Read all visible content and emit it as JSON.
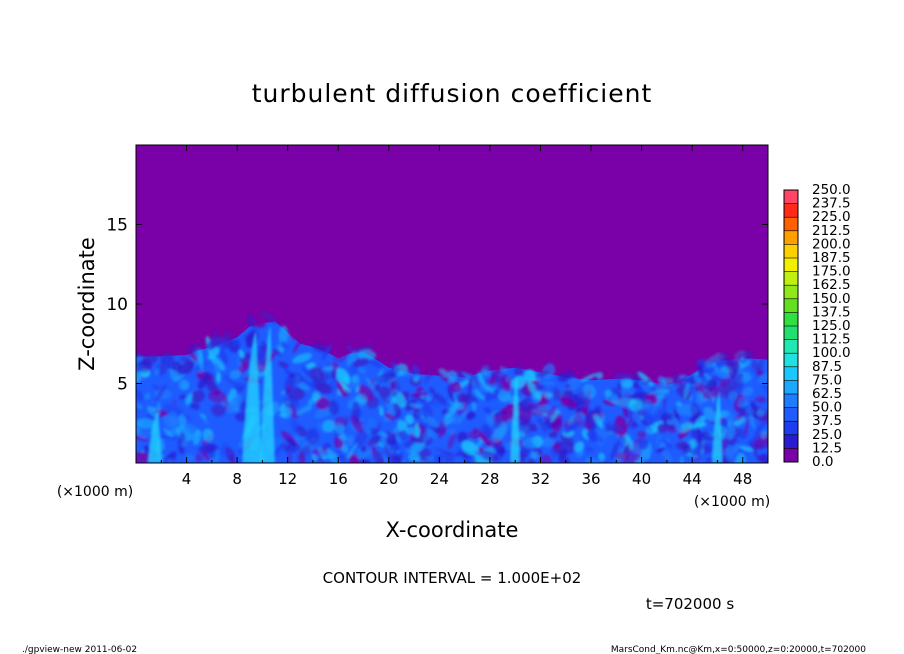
{
  "chart_data": {
    "type": "heatmap",
    "title": "turbulent diffusion coefficient",
    "xlabel": "X-coordinate",
    "ylabel": "Z-coordinate",
    "x_units": "(×1000 m)",
    "z_units": "(×1000 m)",
    "xlim": [
      0,
      50
    ],
    "ylim": [
      0,
      20
    ],
    "x_ticks": [
      "4",
      "8",
      "12",
      "16",
      "20",
      "24",
      "28",
      "32",
      "36",
      "40",
      "44",
      "48"
    ],
    "y_ticks": [
      "5",
      "10",
      "15"
    ],
    "colorbar": {
      "levels": [
        "0.0",
        "12.5",
        "25.0",
        "37.5",
        "50.0",
        "62.5",
        "75.0",
        "87.5",
        "100.0",
        "112.5",
        "125.0",
        "137.5",
        "150.0",
        "162.5",
        "175.0",
        "187.5",
        "200.0",
        "212.5",
        "225.0",
        "237.5",
        "250.0"
      ],
      "colors": [
        "#7a00a8",
        "#2a1ad0",
        "#1e3cf0",
        "#1e5cff",
        "#1e7cff",
        "#1aa8ff",
        "#18c8ff",
        "#20e0e0",
        "#20e8b0",
        "#20e070",
        "#30e040",
        "#60e020",
        "#90e818",
        "#c0f010",
        "#f0f000",
        "#ffd000",
        "#ffa000",
        "#ff6000",
        "#ff2a1a",
        "#ff4466",
        "#ff8aa0"
      ]
    },
    "contour_interval": "CONTOUR INTERVAL = 1.000E+02",
    "time_label": "t=702000 s",
    "mixed_layer_top": [
      [
        0,
        6.7
      ],
      [
        2,
        6.7
      ],
      [
        4,
        6.8
      ],
      [
        5,
        7.1
      ],
      [
        6,
        7.3
      ],
      [
        7,
        7.6
      ],
      [
        8,
        7.9
      ],
      [
        9,
        8.6
      ],
      [
        10,
        8.8
      ],
      [
        11,
        8.9
      ],
      [
        12,
        8.2
      ],
      [
        13,
        7.5
      ],
      [
        14,
        7.3
      ],
      [
        15,
        7.0
      ],
      [
        16,
        6.6
      ],
      [
        17,
        6.9
      ],
      [
        18,
        7.0
      ],
      [
        19,
        6.5
      ],
      [
        20,
        6.0
      ],
      [
        22,
        5.6
      ],
      [
        24,
        5.5
      ],
      [
        26,
        5.4
      ],
      [
        28,
        5.8
      ],
      [
        30,
        6.0
      ],
      [
        32,
        5.7
      ],
      [
        34,
        5.4
      ],
      [
        36,
        5.2
      ],
      [
        38,
        5.3
      ],
      [
        40,
        5.2
      ],
      [
        42,
        4.9
      ],
      [
        43,
        5.1
      ],
      [
        44,
        5.6
      ],
      [
        45,
        6.0
      ],
      [
        46,
        6.4
      ],
      [
        48,
        6.6
      ],
      [
        50,
        6.5
      ]
    ]
  },
  "footer": {
    "left": "./gpview-new   2011-06-02",
    "right": "MarsCond_Km.nc@Km,x=0:50000,z=0:20000,t=702000"
  },
  "colors": {
    "background_field": "#7a00a8",
    "plume": "#1e5cff",
    "plume_core": "#20d8ff"
  }
}
